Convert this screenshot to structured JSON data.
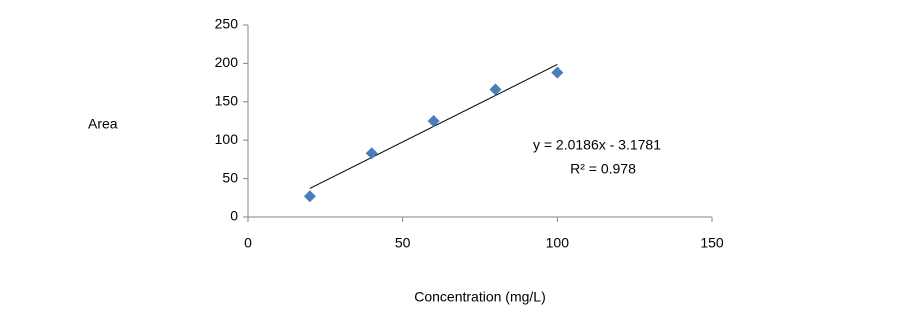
{
  "chart_data": {
    "type": "scatter",
    "x_label": "Concentration (mg/L)",
    "y_label": "Area",
    "series": [
      {
        "name": "Area",
        "color": "#4a7ebb",
        "x": [
          20,
          40,
          60,
          80,
          100
        ],
        "values": [
          27,
          83,
          125,
          166,
          188
        ]
      }
    ],
    "trendline": {
      "x": [
        20,
        100
      ],
      "values": [
        37.19,
        198.68
      ],
      "color": "#000000"
    },
    "annotations": [
      "y = 2.0186x - 3.1781",
      "R² = 0.978"
    ],
    "xlim": [
      0,
      150
    ],
    "xticks": [
      0,
      50,
      100,
      150
    ],
    "ylim": [
      0,
      250
    ],
    "yticks": [
      0,
      50,
      100,
      150,
      200,
      250
    ],
    "grid": false
  }
}
